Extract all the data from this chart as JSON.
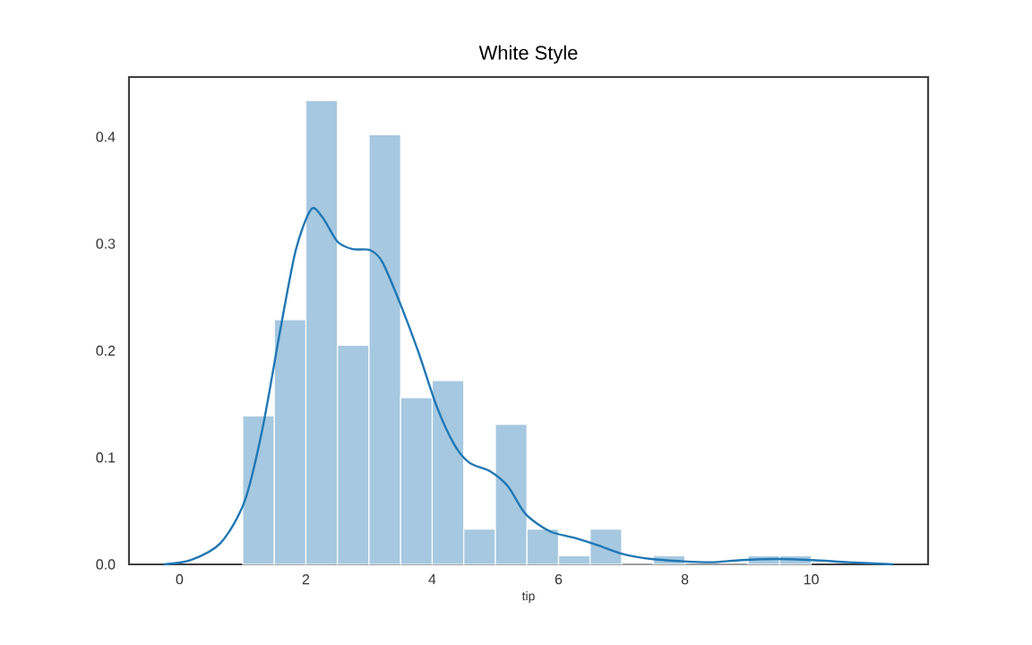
{
  "chart_data": {
    "type": "histogram",
    "title": "White Style",
    "xlabel": "tip",
    "series": [
      {
        "color": "#a6c8e0",
        "bins": [
          1,
          1.5,
          2,
          2.5,
          3,
          3.5,
          4,
          4.5,
          5,
          5.5,
          6,
          6.5,
          7,
          7.5,
          8,
          8.5,
          9,
          9.5,
          10
        ],
        "values": [
          0.139,
          0.229,
          0.434,
          0.205,
          0.402,
          0.156,
          0.172,
          0.033,
          0.131,
          0.033,
          0.008,
          0.033,
          0,
          0.008,
          0,
          0,
          0.008,
          0.008
        ]
      },
      {
        "type": "line",
        "color": "#1f77b4",
        "x": [
          -0.25,
          0.18,
          0.65,
          1.03,
          1.31,
          1.6,
          1.84,
          2.08,
          2.26,
          2.5,
          2.74,
          3.02,
          3.21,
          3.5,
          3.78,
          4.07,
          4.35,
          4.59,
          4.92,
          5.2,
          5.48,
          5.86,
          6.24,
          6.62,
          7.0,
          7.47,
          7.94,
          8.41,
          8.89,
          9.45,
          10.02,
          10.59,
          11.3
        ],
        "values": [
          0,
          0.004,
          0.02,
          0.059,
          0.126,
          0.221,
          0.294,
          0.332,
          0.325,
          0.302,
          0.295,
          0.294,
          0.283,
          0.243,
          0.199,
          0.148,
          0.112,
          0.095,
          0.087,
          0.073,
          0.047,
          0.031,
          0.025,
          0.018,
          0.01,
          0.005,
          0.003,
          0.002,
          0.004,
          0.005,
          0.004,
          0.002,
          0
        ]
      }
    ],
    "xlim": [
      -0.8,
      11.85
    ],
    "ylim": [
      0,
      0.456
    ],
    "xticks": [
      0,
      2,
      4,
      6,
      8,
      10
    ],
    "yticks": [
      {
        "value": 0,
        "label": "0.0"
      },
      {
        "value": 0.1,
        "label": "0.1"
      },
      {
        "value": 0.2,
        "label": "0.2"
      },
      {
        "value": 0.3,
        "label": "0.3"
      },
      {
        "value": 0.4,
        "label": "0.4"
      }
    ],
    "grid": false
  }
}
